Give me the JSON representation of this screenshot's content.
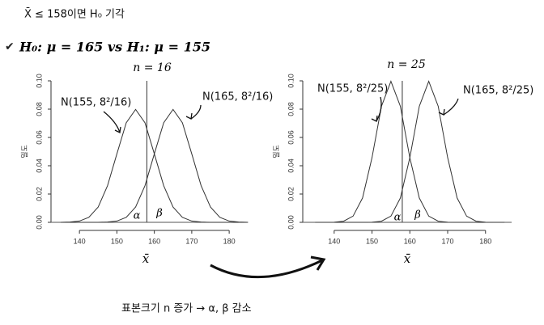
{
  "header": {
    "note": "X̄ ≤ 158이면 H₀ 기각",
    "hypothesis": "H₀: μ = 165  vs  H₁: μ = 155"
  },
  "chart_data": [
    {
      "type": "line",
      "title": "n = 16",
      "xlabel": "x̄",
      "ylabel": "밀도",
      "x": [
        135,
        137.5,
        140,
        142.5,
        145,
        147.5,
        150,
        152.5,
        155,
        157.5,
        160,
        162.5,
        165,
        167.5,
        170,
        172.5,
        175,
        177.5,
        180,
        182.5,
        185
      ],
      "series": [
        {
          "name": "N(155, 8²/16)",
          "color": "#333333",
          "values": [
            0,
            0.0002,
            0.0009,
            0.0035,
            0.0108,
            0.0259,
            0.0484,
            0.0704,
            0.0798,
            0.0704,
            0.0484,
            0.0259,
            0.0108,
            0.0035,
            0.0009,
            0.0002,
            0,
            0,
            0,
            0,
            0
          ]
        },
        {
          "name": "N(165, 8²/16)",
          "color": "#333333",
          "values": [
            0,
            0,
            0,
            0,
            0,
            0.0002,
            0.0009,
            0.0035,
            0.0108,
            0.0259,
            0.0484,
            0.0704,
            0.0798,
            0.0704,
            0.0484,
            0.0259,
            0.0108,
            0.0035,
            0.0009,
            0.0002,
            0
          ]
        }
      ],
      "cutoff": 158,
      "annotations": [
        "α",
        "β"
      ],
      "xlim": [
        132.4,
        183.0
      ],
      "ylim": [
        0,
        0.1
      ],
      "xticks": [
        140,
        150,
        160,
        170,
        180
      ],
      "yticks": [
        {
          "value": 0,
          "label": "0.00"
        },
        {
          "value": 0.02,
          "label": "0.02"
        },
        {
          "value": 0.04,
          "label": "0.04"
        },
        {
          "value": 0.06,
          "label": "0.06"
        },
        {
          "value": 0.08,
          "label": "0.08"
        },
        {
          "value": 0.1,
          "label": "0.10"
        }
      ]
    },
    {
      "type": "line",
      "title": "n = 25",
      "xlabel": "x̄",
      "ylabel": "밀도",
      "x": [
        135,
        137.5,
        140,
        142.5,
        145,
        147.5,
        150,
        152.5,
        155,
        157.5,
        160,
        162.5,
        165,
        167.5,
        170,
        172.5,
        175,
        177.5,
        180,
        182.5,
        185
      ],
      "series": [
        {
          "name": "N(155, 8²/25)",
          "color": "#333333",
          "values": [
            0,
            0,
            0.0001,
            0.0008,
            0.0044,
            0.0172,
            0.0457,
            0.082,
            0.0997,
            0.082,
            0.0457,
            0.0172,
            0.0044,
            0.0008,
            0.0001,
            0,
            0,
            0,
            0,
            0,
            0
          ]
        },
        {
          "name": "N(165, 8²/25)",
          "color": "#333333",
          "values": [
            0,
            0,
            0,
            0,
            0,
            0,
            0.0001,
            0.0008,
            0.0044,
            0.0172,
            0.0457,
            0.082,
            0.0997,
            0.082,
            0.0457,
            0.0172,
            0.0044,
            0.0008,
            0.0001,
            0,
            0
          ]
        }
      ],
      "cutoff": 158,
      "annotations": [
        "α",
        "β"
      ],
      "xlim": [
        131.7,
        186.9
      ],
      "ylim": [
        0,
        0.1
      ],
      "xticks": [
        140,
        150,
        160,
        170,
        180
      ],
      "yticks": [
        {
          "value": 0,
          "label": "0.00"
        },
        {
          "value": 0.02,
          "label": "0.02"
        },
        {
          "value": 0.04,
          "label": "0.04"
        },
        {
          "value": 0.06,
          "label": "0.06"
        },
        {
          "value": 0.08,
          "label": "0.08"
        },
        {
          "value": 0.1,
          "label": "0.10"
        }
      ]
    }
  ],
  "footer": {
    "note": "표본크기 n 증가 → α, β 감소"
  }
}
